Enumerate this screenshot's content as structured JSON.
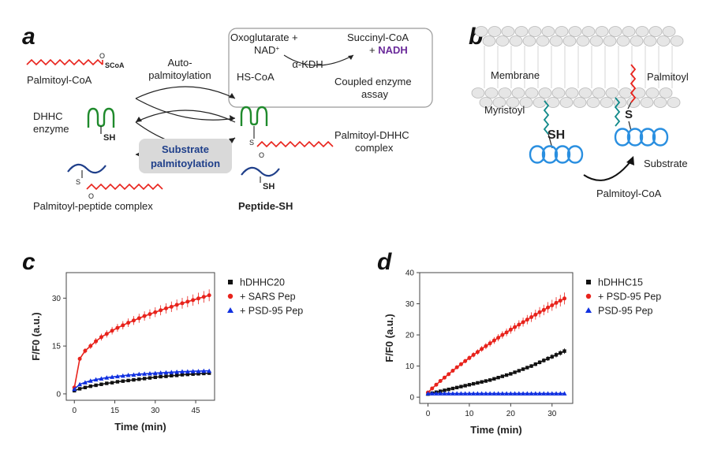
{
  "panels": {
    "a": "a",
    "b": "b",
    "c": "c",
    "d": "d"
  },
  "colors": {
    "red": "#e8231c",
    "green": "#1f8a2c",
    "navy": "#1f3f8a",
    "cyan": "#2a8fe0",
    "teal": "#128a8a",
    "purple": "#6a2a9a",
    "blue": "#1030e0",
    "black": "#111111"
  },
  "panel_a": {
    "palmitoyl_coa": "Palmitoyl-CoA",
    "scoa": "SCoA",
    "o": "O",
    "auto_1": "Auto-",
    "auto_2": "palmitoylation",
    "oxoglutarate": "Oxoglutarate +",
    "nad": "NAD",
    "nad_sup": "+",
    "succinyl": "Succinyl-CoA",
    "nadh_plus": "+",
    "nadh": "NADH",
    "akdh": "α-KDH",
    "hscoa": "HS-CoA",
    "coupled_1": "Coupled enzyme",
    "coupled_2": "assay",
    "dhhc_1": "DHHC",
    "dhhc_2": "enzyme",
    "sh": "SH",
    "s": "S",
    "substrate_1": "Substrate",
    "substrate_2": "palmitoylation",
    "pdhhc_1": "Palmitoyl-DHHC",
    "pdhhc_2": "complex",
    "ppep": "Palmitoyl-peptide complex",
    "peptide_sh": "Peptide-SH"
  },
  "panel_b": {
    "membrane": "Membrane",
    "palmitoyl": "Palmitoyl",
    "myristoyl": "Myristoyl",
    "sh": "SH",
    "s": "S",
    "substrate": "Substrate",
    "palmitoyl_coa": "Palmitoyl-CoA"
  },
  "chart_data": [
    {
      "type": "scatter",
      "panel": "c",
      "xlabel": "Time (min)",
      "ylabel": "F/F0 (a.u.)",
      "xlim": [
        -3,
        52
      ],
      "ylim": [
        -2,
        38
      ],
      "xticks": [
        0,
        15,
        30,
        45
      ],
      "yticks": [
        0,
        15,
        30
      ],
      "series": [
        {
          "name": "hDHHC20",
          "marker": "square",
          "color": "#111111",
          "x": [
            0,
            2,
            4,
            6,
            8,
            10,
            12,
            14,
            16,
            18,
            20,
            22,
            24,
            26,
            28,
            30,
            32,
            34,
            36,
            38,
            40,
            42,
            44,
            46,
            48,
            50
          ],
          "y": [
            1.0,
            1.6,
            2.0,
            2.4,
            2.7,
            3.0,
            3.3,
            3.5,
            3.8,
            4.0,
            4.2,
            4.4,
            4.6,
            4.8,
            5.0,
            5.2,
            5.4,
            5.5,
            5.7,
            5.8,
            6.0,
            6.1,
            6.2,
            6.3,
            6.4,
            6.5
          ]
        },
        {
          "name": "+ SARS Pep",
          "marker": "circle",
          "color": "#e8231c",
          "x": [
            0,
            2,
            4,
            6,
            8,
            10,
            12,
            14,
            16,
            18,
            20,
            22,
            24,
            26,
            28,
            30,
            32,
            34,
            36,
            38,
            40,
            42,
            44,
            46,
            48,
            50
          ],
          "y": [
            2.0,
            11.0,
            13.5,
            15.0,
            16.5,
            17.8,
            18.8,
            19.8,
            20.7,
            21.5,
            22.3,
            23.0,
            23.7,
            24.4,
            25.0,
            25.6,
            26.2,
            26.8,
            27.3,
            27.9,
            28.4,
            28.9,
            29.4,
            29.9,
            30.4,
            30.9
          ]
        },
        {
          "name": "+ PSD-95 Pep",
          "marker": "triangle",
          "color": "#1030e0",
          "x": [
            0,
            2,
            4,
            6,
            8,
            10,
            12,
            14,
            16,
            18,
            20,
            22,
            24,
            26,
            28,
            30,
            32,
            34,
            36,
            38,
            40,
            42,
            44,
            46,
            48,
            50
          ],
          "y": [
            1.5,
            3.0,
            3.6,
            4.1,
            4.5,
            4.8,
            5.1,
            5.3,
            5.5,
            5.7,
            5.9,
            6.0,
            6.2,
            6.3,
            6.4,
            6.5,
            6.6,
            6.7,
            6.8,
            6.9,
            7.0,
            7.0,
            7.1,
            7.1,
            7.2,
            7.2
          ]
        }
      ],
      "legend": "right"
    },
    {
      "type": "scatter",
      "panel": "d",
      "xlabel": "Time (min)",
      "ylabel": "F/F0 (a.u.)",
      "xlim": [
        -2,
        35
      ],
      "ylim": [
        -2,
        40
      ],
      "xticks": [
        0,
        10,
        20,
        30
      ],
      "yticks": [
        0,
        10,
        20,
        30,
        40
      ],
      "series": [
        {
          "name": "hDHHC15",
          "marker": "square",
          "color": "#111111",
          "x": [
            0,
            1,
            2,
            3,
            4,
            5,
            6,
            7,
            8,
            9,
            10,
            11,
            12,
            13,
            14,
            15,
            16,
            17,
            18,
            19,
            20,
            21,
            22,
            23,
            24,
            25,
            26,
            27,
            28,
            29,
            30,
            31,
            32,
            33
          ],
          "y": [
            1.0,
            1.3,
            1.6,
            1.9,
            2.2,
            2.5,
            2.8,
            3.1,
            3.4,
            3.7,
            4.0,
            4.3,
            4.6,
            4.9,
            5.2,
            5.5,
            5.9,
            6.3,
            6.7,
            7.1,
            7.5,
            8.0,
            8.5,
            9.0,
            9.5,
            10.0,
            10.6,
            11.2,
            11.8,
            12.4,
            13.0,
            13.6,
            14.2,
            14.8
          ]
        },
        {
          "name": "+ PSD-95 Pep",
          "marker": "circle",
          "color": "#e8231c",
          "x": [
            0,
            1,
            2,
            3,
            4,
            5,
            6,
            7,
            8,
            9,
            10,
            11,
            12,
            13,
            14,
            15,
            16,
            17,
            18,
            19,
            20,
            21,
            22,
            23,
            24,
            25,
            26,
            27,
            28,
            29,
            30,
            31,
            32,
            33
          ],
          "y": [
            1.5,
            2.8,
            4.0,
            5.2,
            6.3,
            7.4,
            8.5,
            9.6,
            10.6,
            11.6,
            12.6,
            13.6,
            14.5,
            15.5,
            16.4,
            17.3,
            18.2,
            19.1,
            20.0,
            20.8,
            21.7,
            22.5,
            23.3,
            24.1,
            24.9,
            25.7,
            26.5,
            27.3,
            28.0,
            28.8,
            29.5,
            30.3,
            31.0,
            31.7
          ]
        },
        {
          "name": "PSD-95 Pep",
          "marker": "triangle",
          "color": "#1030e0",
          "x": [
            0,
            1,
            2,
            3,
            4,
            5,
            6,
            7,
            8,
            9,
            10,
            11,
            12,
            13,
            14,
            15,
            16,
            17,
            18,
            19,
            20,
            21,
            22,
            23,
            24,
            25,
            26,
            27,
            28,
            29,
            30,
            31,
            32,
            33
          ],
          "y": [
            1.2,
            1.2,
            1.2,
            1.2,
            1.2,
            1.2,
            1.2,
            1.2,
            1.2,
            1.2,
            1.2,
            1.2,
            1.2,
            1.2,
            1.2,
            1.2,
            1.2,
            1.2,
            1.2,
            1.2,
            1.2,
            1.2,
            1.2,
            1.2,
            1.2,
            1.2,
            1.2,
            1.2,
            1.2,
            1.2,
            1.2,
            1.2,
            1.2,
            1.2
          ]
        }
      ],
      "legend": "right"
    }
  ]
}
